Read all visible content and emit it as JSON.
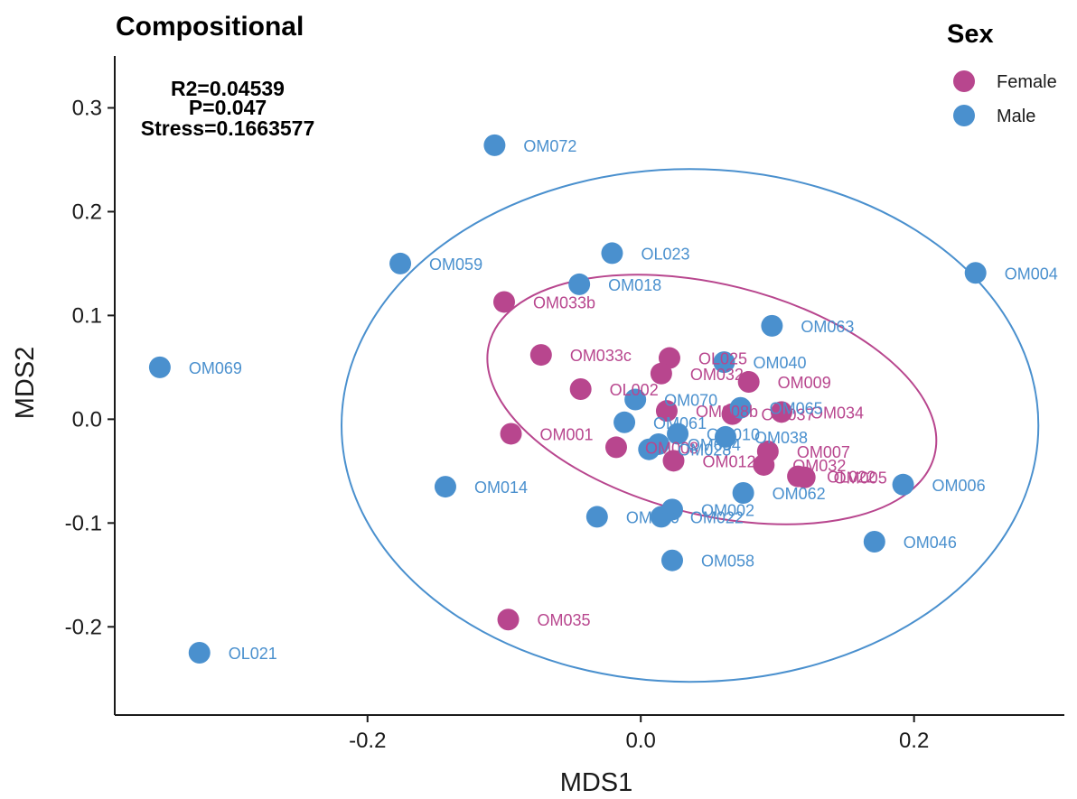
{
  "chart_data": {
    "type": "scatter",
    "title": "Compositional",
    "annotations": [
      "R2=0.04539",
      "P=0.047",
      "Stress=0.1663577"
    ],
    "xlabel": "MDS1",
    "ylabel": "MDS2",
    "xlim": [
      -0.385,
      0.31
    ],
    "ylim": [
      -0.285,
      0.35
    ],
    "xticks": [
      -0.2,
      0.0,
      0.2
    ],
    "xtick_labels": [
      "-0.2",
      "0.0",
      "0.2"
    ],
    "yticks": [
      -0.2,
      -0.1,
      0.0,
      0.1,
      0.2,
      0.3
    ],
    "ytick_labels": [
      "-0.2",
      "-0.1",
      "0.0",
      "0.1",
      "0.2",
      "0.3"
    ],
    "grid": false,
    "legend": {
      "title": "Sex",
      "position": "top-right",
      "entries": [
        {
          "label": "Female",
          "color": "#B8468E"
        },
        {
          "label": "Male",
          "color": "#4A90CE"
        }
      ]
    },
    "series": [
      {
        "name": "Female",
        "color": "#B8468E",
        "points": [
          {
            "label": "OM033b",
            "x": -0.1,
            "y": 0.113
          },
          {
            "label": "OM033c",
            "x": -0.073,
            "y": 0.062
          },
          {
            "label": "OL025",
            "x": 0.021,
            "y": 0.059
          },
          {
            "label": "OM032a",
            "x": 0.015,
            "y": 0.044
          },
          {
            "label": "OM009",
            "x": 0.079,
            "y": 0.036
          },
          {
            "label": "OL002",
            "x": -0.044,
            "y": 0.029
          },
          {
            "label": "OM008b",
            "x": 0.019,
            "y": 0.008
          },
          {
            "label": "OM037",
            "x": 0.067,
            "y": 0.005
          },
          {
            "label": "OM034",
            "x": 0.103,
            "y": 0.007
          },
          {
            "label": "OM001",
            "x": -0.095,
            "y": -0.014
          },
          {
            "label": "OM007",
            "x": 0.093,
            "y": -0.031
          },
          {
            "label": "OM032",
            "x": 0.09,
            "y": -0.044
          },
          {
            "label": "OL022",
            "x": 0.115,
            "y": -0.055
          },
          {
            "label": "OM005",
            "x": 0.12,
            "y": -0.056
          },
          {
            "label": "OM012",
            "x": 0.024,
            "y": -0.04
          },
          {
            "label": "OM008",
            "x": -0.018,
            "y": -0.027
          },
          {
            "label": "OM035",
            "x": -0.097,
            "y": -0.193
          }
        ]
      },
      {
        "name": "Male",
        "color": "#4A90CE",
        "points": [
          {
            "label": "OM072",
            "x": -0.107,
            "y": 0.264
          },
          {
            "label": "OL023",
            "x": -0.021,
            "y": 0.16
          },
          {
            "label": "OM059",
            "x": -0.176,
            "y": 0.15
          },
          {
            "label": "OM004",
            "x": 0.245,
            "y": 0.141
          },
          {
            "label": "OM018",
            "x": -0.045,
            "y": 0.13
          },
          {
            "label": "OM063",
            "x": 0.096,
            "y": 0.09
          },
          {
            "label": "OM040",
            "x": 0.061,
            "y": 0.055
          },
          {
            "label": "OM069",
            "x": -0.352,
            "y": 0.05
          },
          {
            "label": "OM070",
            "x": -0.004,
            "y": 0.019
          },
          {
            "label": "OM065",
            "x": 0.073,
            "y": 0.011
          },
          {
            "label": "OM061",
            "x": -0.012,
            "y": -0.003
          },
          {
            "label": "OM010",
            "x": 0.027,
            "y": -0.014
          },
          {
            "label": "OM038",
            "x": 0.062,
            "y": -0.017
          },
          {
            "label": "OM054",
            "x": 0.013,
            "y": -0.024
          },
          {
            "label": "OM028",
            "x": 0.006,
            "y": -0.029
          },
          {
            "label": "OM014",
            "x": -0.143,
            "y": -0.065
          },
          {
            "label": "OM062",
            "x": 0.075,
            "y": -0.071
          },
          {
            "label": "OM006",
            "x": 0.192,
            "y": -0.063
          },
          {
            "label": "OM002",
            "x": 0.023,
            "y": -0.087
          },
          {
            "label": "OM020",
            "x": -0.032,
            "y": -0.094
          },
          {
            "label": "OM022",
            "x": 0.015,
            "y": -0.094
          },
          {
            "label": "OM046",
            "x": 0.171,
            "y": -0.118
          },
          {
            "label": "OM058",
            "x": 0.023,
            "y": -0.136
          },
          {
            "label": "OL021",
            "x": -0.323,
            "y": -0.225
          }
        ]
      }
    ],
    "ellipses": [
      {
        "group": "Male",
        "color": "#4A90CE",
        "center": [
          0.036,
          -0.006
        ],
        "semi_axes": [
          0.255,
          0.247
        ],
        "angle_deg": 0
      },
      {
        "group": "Female",
        "color": "#B8468E",
        "center": [
          0.052,
          0.019
        ],
        "semi_axes": [
          0.168,
          0.111
        ],
        "angle_deg": -14
      }
    ]
  }
}
